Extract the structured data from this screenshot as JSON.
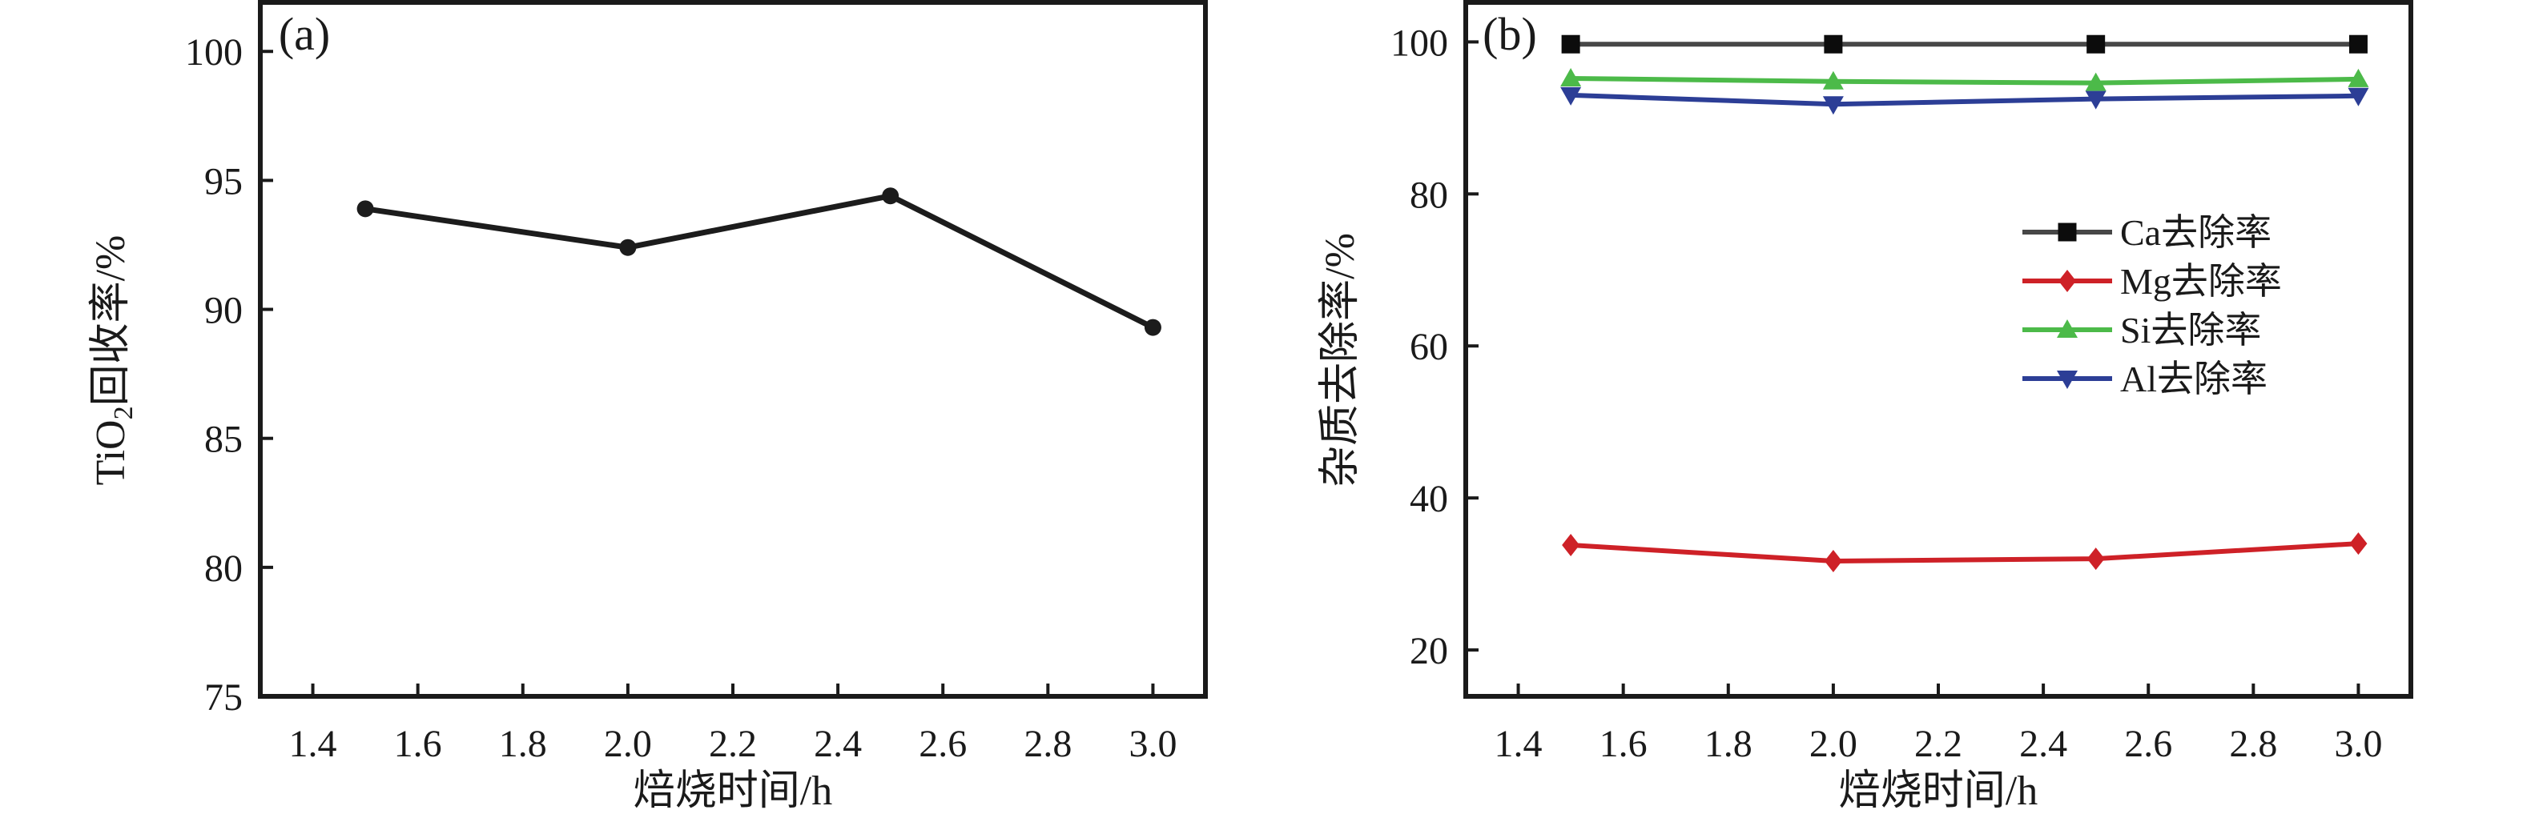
{
  "figure": {
    "background": "#ffffff",
    "axis_color": "#1a1a1a",
    "text_color": "#1a1a1a"
  },
  "chart_data": [
    {
      "type": "line",
      "panel_label": "(a)",
      "title": "",
      "xlabel": "焙烧时间/h",
      "ylabel": "TiO2回收率/%",
      "ylabel_parts": [
        {
          "t": "TiO"
        },
        {
          "t": "2",
          "sub": true
        },
        {
          "t": "回收率/%"
        }
      ],
      "x": [
        1.5,
        2.0,
        2.5,
        3.0
      ],
      "series": [
        {
          "name": "TiO2回收率",
          "values": [
            93.9,
            92.4,
            94.4,
            89.3
          ],
          "color": "#1c1c1c",
          "marker": "circle",
          "marker_color": "#1c1c1c"
        }
      ],
      "xlim": [
        1.3,
        3.1
      ],
      "ylim": [
        75,
        101.9
      ],
      "x_ticks": [
        1.4,
        1.6,
        1.8,
        2.0,
        2.2,
        2.4,
        2.6,
        2.8,
        3.0
      ],
      "x_tick_labels": [
        "1.4",
        "1.6",
        "1.8",
        "2.0",
        "2.2",
        "2.4",
        "2.6",
        "2.8",
        "3.0"
      ],
      "y_ticks": [
        75,
        80,
        85,
        90,
        95,
        100
      ],
      "y_tick_labels": [
        "75",
        "80",
        "85",
        "90",
        "95",
        "100"
      ],
      "grid": false,
      "legend": null
    },
    {
      "type": "line",
      "panel_label": "(b)",
      "title": "",
      "xlabel": "焙烧时间/h",
      "ylabel": "杂质去除率/%",
      "ylabel_parts": [
        {
          "t": "杂质去除率/%"
        }
      ],
      "x": [
        1.5,
        2.0,
        2.5,
        3.0
      ],
      "series": [
        {
          "name": "Ca去除率",
          "values": [
            99.7,
            99.7,
            99.7,
            99.7
          ],
          "color": "#474747",
          "marker": "square",
          "marker_color": "#0c0c0c"
        },
        {
          "name": "Mg去除率",
          "values": [
            33.8,
            31.7,
            32.0,
            34.0
          ],
          "color": "#ce2127",
          "marker": "diamond",
          "marker_color": "#ce2127"
        },
        {
          "name": "Si去除率",
          "values": [
            95.2,
            94.8,
            94.6,
            95.1
          ],
          "color": "#4cba49",
          "marker": "triangle-up",
          "marker_color": "#4cba49"
        },
        {
          "name": "Al去除率",
          "values": [
            93.0,
            91.8,
            92.5,
            92.9
          ],
          "color": "#2c3e96",
          "marker": "triangle-down",
          "marker_color": "#2c3e96"
        }
      ],
      "xlim": [
        1.3,
        3.1
      ],
      "ylim": [
        13.9,
        105.2
      ],
      "x_ticks": [
        1.4,
        1.6,
        1.8,
        2.0,
        2.2,
        2.4,
        2.6,
        2.8,
        3.0
      ],
      "x_tick_labels": [
        "1.4",
        "1.6",
        "1.8",
        "2.0",
        "2.2",
        "2.4",
        "2.6",
        "2.8",
        "3.0"
      ],
      "y_ticks": [
        20,
        40,
        60,
        80,
        100
      ],
      "y_tick_labels": [
        "20",
        "40",
        "60",
        "80",
        "100"
      ],
      "grid": false,
      "legend": {
        "position": "center-right",
        "labels": [
          "Ca去除率",
          "Mg去除率",
          "Si去除率",
          "Al去除率"
        ]
      }
    }
  ]
}
